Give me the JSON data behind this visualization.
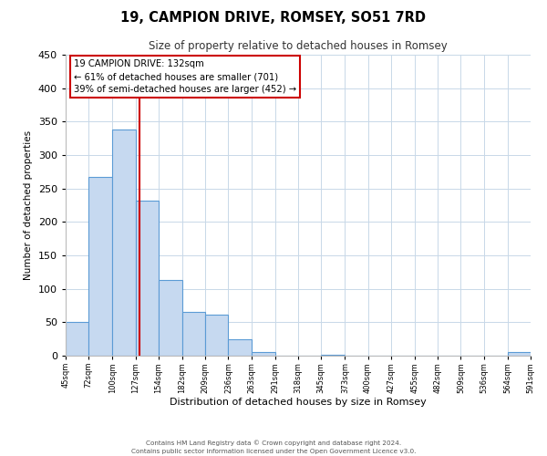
{
  "title_line1": "19, CAMPION DRIVE, ROMSEY, SO51 7RD",
  "title_line2": "Size of property relative to detached houses in Romsey",
  "xlabel": "Distribution of detached houses by size in Romsey",
  "ylabel": "Number of detached properties",
  "bar_edges": [
    45,
    72,
    100,
    127,
    154,
    182,
    209,
    236,
    263,
    291,
    318,
    345,
    373,
    400,
    427,
    455,
    482,
    509,
    536,
    564,
    591
  ],
  "bar_heights": [
    50,
    267,
    338,
    232,
    113,
    65,
    62,
    25,
    6,
    0,
    0,
    2,
    0,
    0,
    0,
    0,
    0,
    0,
    0,
    5
  ],
  "bar_color": "#c6d9f0",
  "bar_edge_color": "#5b9bd5",
  "vline_x": 132,
  "vline_color": "#cc0000",
  "annotation_title": "19 CAMPION DRIVE: 132sqm",
  "annotation_line1": "← 61% of detached houses are smaller (701)",
  "annotation_line2": "39% of semi-detached houses are larger (452) →",
  "annotation_box_color": "#ffffff",
  "annotation_box_edge_color": "#cc0000",
  "ylim": [
    0,
    450
  ],
  "tick_labels": [
    "45sqm",
    "72sqm",
    "100sqm",
    "127sqm",
    "154sqm",
    "182sqm",
    "209sqm",
    "236sqm",
    "263sqm",
    "291sqm",
    "318sqm",
    "345sqm",
    "373sqm",
    "400sqm",
    "427sqm",
    "455sqm",
    "482sqm",
    "509sqm",
    "536sqm",
    "564sqm",
    "591sqm"
  ],
  "footnote1": "Contains HM Land Registry data © Crown copyright and database right 2024.",
  "footnote2": "Contains public sector information licensed under the Open Government Licence v3.0.",
  "background_color": "#ffffff",
  "grid_color": "#c8d8e8"
}
